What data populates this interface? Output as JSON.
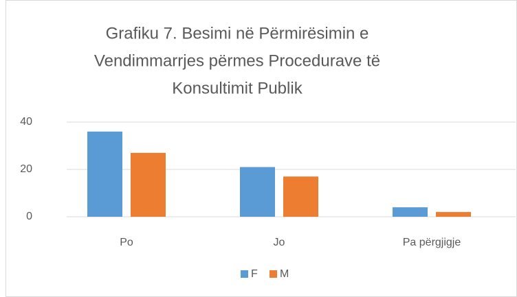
{
  "chart_data": {
    "type": "bar",
    "title": [
      "Grafiku 7. Besimi në Përmirësimin e",
      "Vendimmarrjes përmes Procedurave të",
      "Konsultimit Publik"
    ],
    "categories": [
      "Po",
      "Jo",
      "Pa përgjigje"
    ],
    "series": [
      {
        "name": "F",
        "color": "#5b9bd5",
        "values": [
          36,
          21,
          4
        ]
      },
      {
        "name": "M",
        "color": "#ed7d31",
        "values": [
          27,
          17,
          2
        ]
      }
    ],
    "ylim": [
      0,
      40
    ],
    "yticks": [
      0,
      20,
      40
    ],
    "grid": true,
    "legend": "bottom"
  }
}
